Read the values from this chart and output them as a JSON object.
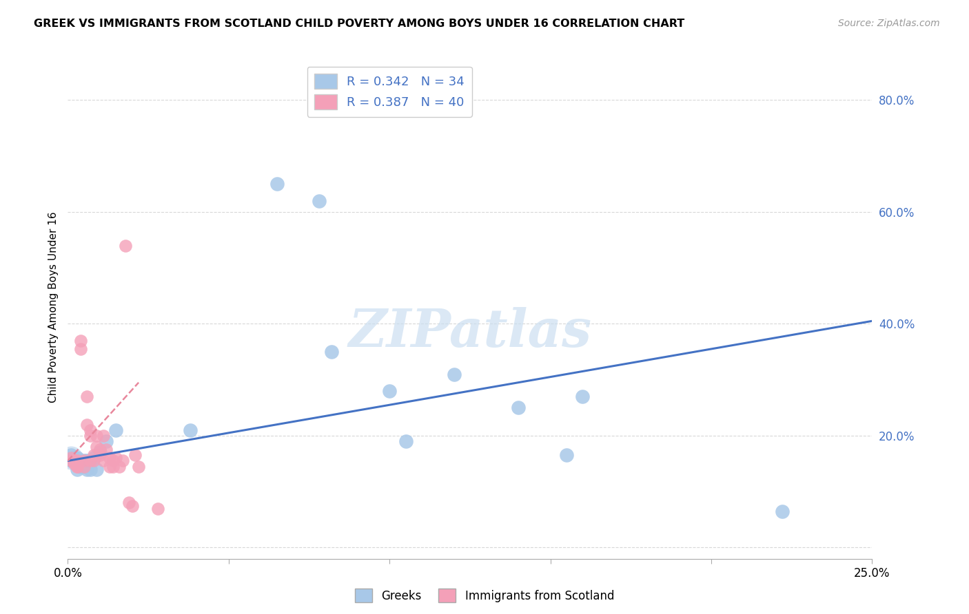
{
  "title": "GREEK VS IMMIGRANTS FROM SCOTLAND CHILD POVERTY AMONG BOYS UNDER 16 CORRELATION CHART",
  "source": "Source: ZipAtlas.com",
  "ylabel": "Child Poverty Among Boys Under 16",
  "xlim": [
    0.0,
    0.25
  ],
  "ylim": [
    -0.02,
    0.88
  ],
  "r1": 0.342,
  "n1": 34,
  "r2": 0.387,
  "n2": 40,
  "color1": "#a8c8e8",
  "color2": "#f4a0b8",
  "line_color1": "#4472c4",
  "line_color2": "#e8879c",
  "greek_x": [
    0.001,
    0.001,
    0.002,
    0.002,
    0.002,
    0.003,
    0.003,
    0.003,
    0.003,
    0.004,
    0.004,
    0.004,
    0.005,
    0.005,
    0.006,
    0.006,
    0.007,
    0.007,
    0.008,
    0.009,
    0.01,
    0.012,
    0.015,
    0.038,
    0.065,
    0.078,
    0.082,
    0.1,
    0.105,
    0.12,
    0.14,
    0.155,
    0.16,
    0.222
  ],
  "greek_y": [
    0.155,
    0.165,
    0.155,
    0.16,
    0.155,
    0.14,
    0.15,
    0.155,
    0.16,
    0.145,
    0.15,
    0.155,
    0.145,
    0.155,
    0.14,
    0.155,
    0.14,
    0.155,
    0.16,
    0.14,
    0.17,
    0.19,
    0.21,
    0.21,
    0.65,
    0.62,
    0.35,
    0.28,
    0.19,
    0.31,
    0.25,
    0.165,
    0.27,
    0.065
  ],
  "scotland_x": [
    0.001,
    0.001,
    0.002,
    0.002,
    0.002,
    0.003,
    0.003,
    0.003,
    0.003,
    0.004,
    0.004,
    0.005,
    0.005,
    0.006,
    0.006,
    0.007,
    0.007,
    0.007,
    0.008,
    0.008,
    0.009,
    0.009,
    0.01,
    0.01,
    0.011,
    0.011,
    0.012,
    0.013,
    0.013,
    0.014,
    0.014,
    0.015,
    0.016,
    0.017,
    0.018,
    0.019,
    0.02,
    0.021,
    0.022,
    0.028
  ],
  "scotland_y": [
    0.155,
    0.16,
    0.155,
    0.155,
    0.15,
    0.145,
    0.155,
    0.145,
    0.15,
    0.37,
    0.355,
    0.145,
    0.155,
    0.22,
    0.27,
    0.2,
    0.21,
    0.155,
    0.155,
    0.165,
    0.2,
    0.18,
    0.165,
    0.175,
    0.155,
    0.2,
    0.175,
    0.145,
    0.16,
    0.155,
    0.145,
    0.16,
    0.145,
    0.155,
    0.54,
    0.08,
    0.075,
    0.165,
    0.145,
    0.07
  ]
}
